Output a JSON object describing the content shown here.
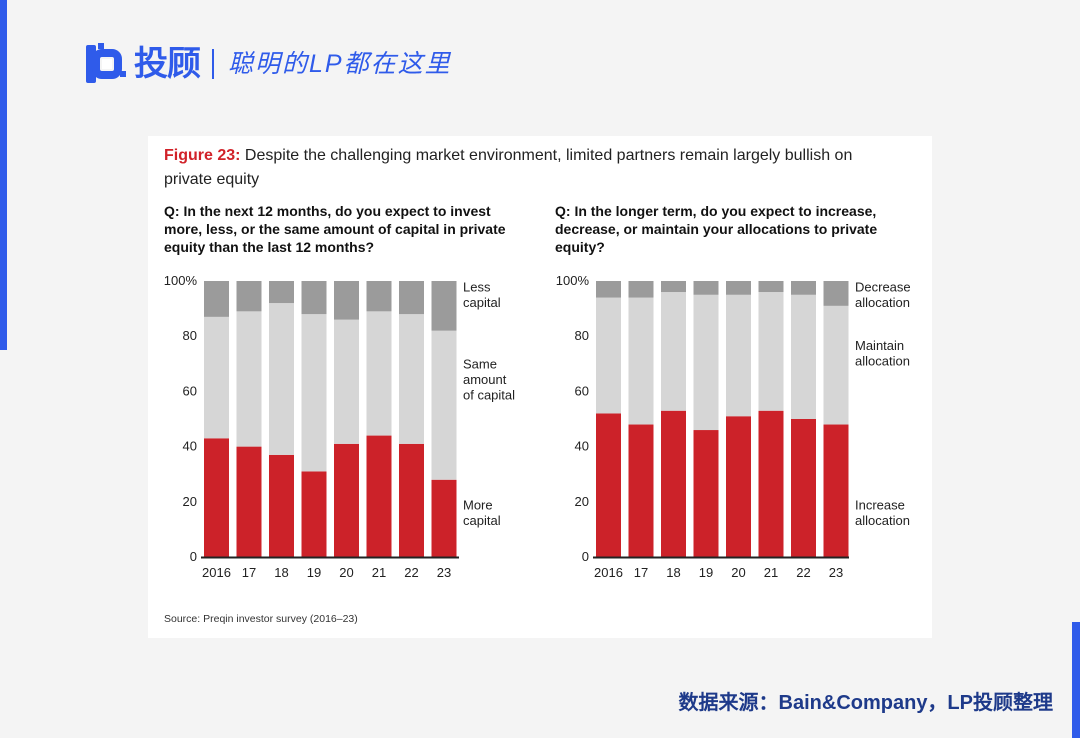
{
  "brand": {
    "name": "投顾",
    "slogan": "聪明的LP都在这里"
  },
  "figure": {
    "label": "Figure 23:",
    "title": "Despite the challenging market environment, limited partners remain largely bullish on private equity",
    "source": "Source: Preqin investor survey (2016–23)"
  },
  "footer": {
    "text": "数据来源：Bain&Company，LP投顾整理"
  },
  "colors": {
    "more": "#cc2229",
    "same": "#d6d6d6",
    "less": "#9b9b9b",
    "brand": "#2f5bea"
  },
  "chart_data": [
    {
      "type": "bar",
      "stacked": true,
      "title": "Q: In the next 12 months, do you expect to invest more, less, or the same amount of capital in private equity than the last 12 months?",
      "categories": [
        "2016",
        "17",
        "18",
        "19",
        "20",
        "21",
        "22",
        "23"
      ],
      "yticks": [
        "0",
        "20",
        "40",
        "60",
        "80",
        "100%"
      ],
      "ylim": [
        0,
        100
      ],
      "series": [
        {
          "name": "More capital",
          "label_lines": [
            "More",
            "capital"
          ],
          "values": [
            43,
            40,
            37,
            31,
            41,
            44,
            41,
            28
          ]
        },
        {
          "name": "Same amount of capital",
          "label_lines": [
            "Same",
            "amount",
            "of capital"
          ],
          "values": [
            44,
            49,
            55,
            57,
            45,
            45,
            47,
            54
          ]
        },
        {
          "name": "Less capital",
          "label_lines": [
            "Less",
            "capital"
          ],
          "values": [
            13,
            11,
            8,
            12,
            14,
            11,
            12,
            18
          ]
        }
      ]
    },
    {
      "type": "bar",
      "stacked": true,
      "title": "Q: In the longer term, do you expect to increase, decrease, or maintain your allocations to private equity?",
      "categories": [
        "2016",
        "17",
        "18",
        "19",
        "20",
        "21",
        "22",
        "23"
      ],
      "yticks": [
        "0",
        "20",
        "40",
        "60",
        "80",
        "100%"
      ],
      "ylim": [
        0,
        100
      ],
      "series": [
        {
          "name": "Increase allocation",
          "label_lines": [
            "Increase",
            "allocation"
          ],
          "values": [
            52,
            48,
            53,
            46,
            51,
            53,
            50,
            48
          ]
        },
        {
          "name": "Maintain allocation",
          "label_lines": [
            "Maintain",
            "allocation"
          ],
          "values": [
            42,
            46,
            43,
            49,
            44,
            43,
            45,
            43
          ]
        },
        {
          "name": "Decrease allocation",
          "label_lines": [
            "Decrease",
            "allocation"
          ],
          "values": [
            6,
            6,
            4,
            5,
            5,
            4,
            5,
            9
          ]
        }
      ]
    }
  ]
}
